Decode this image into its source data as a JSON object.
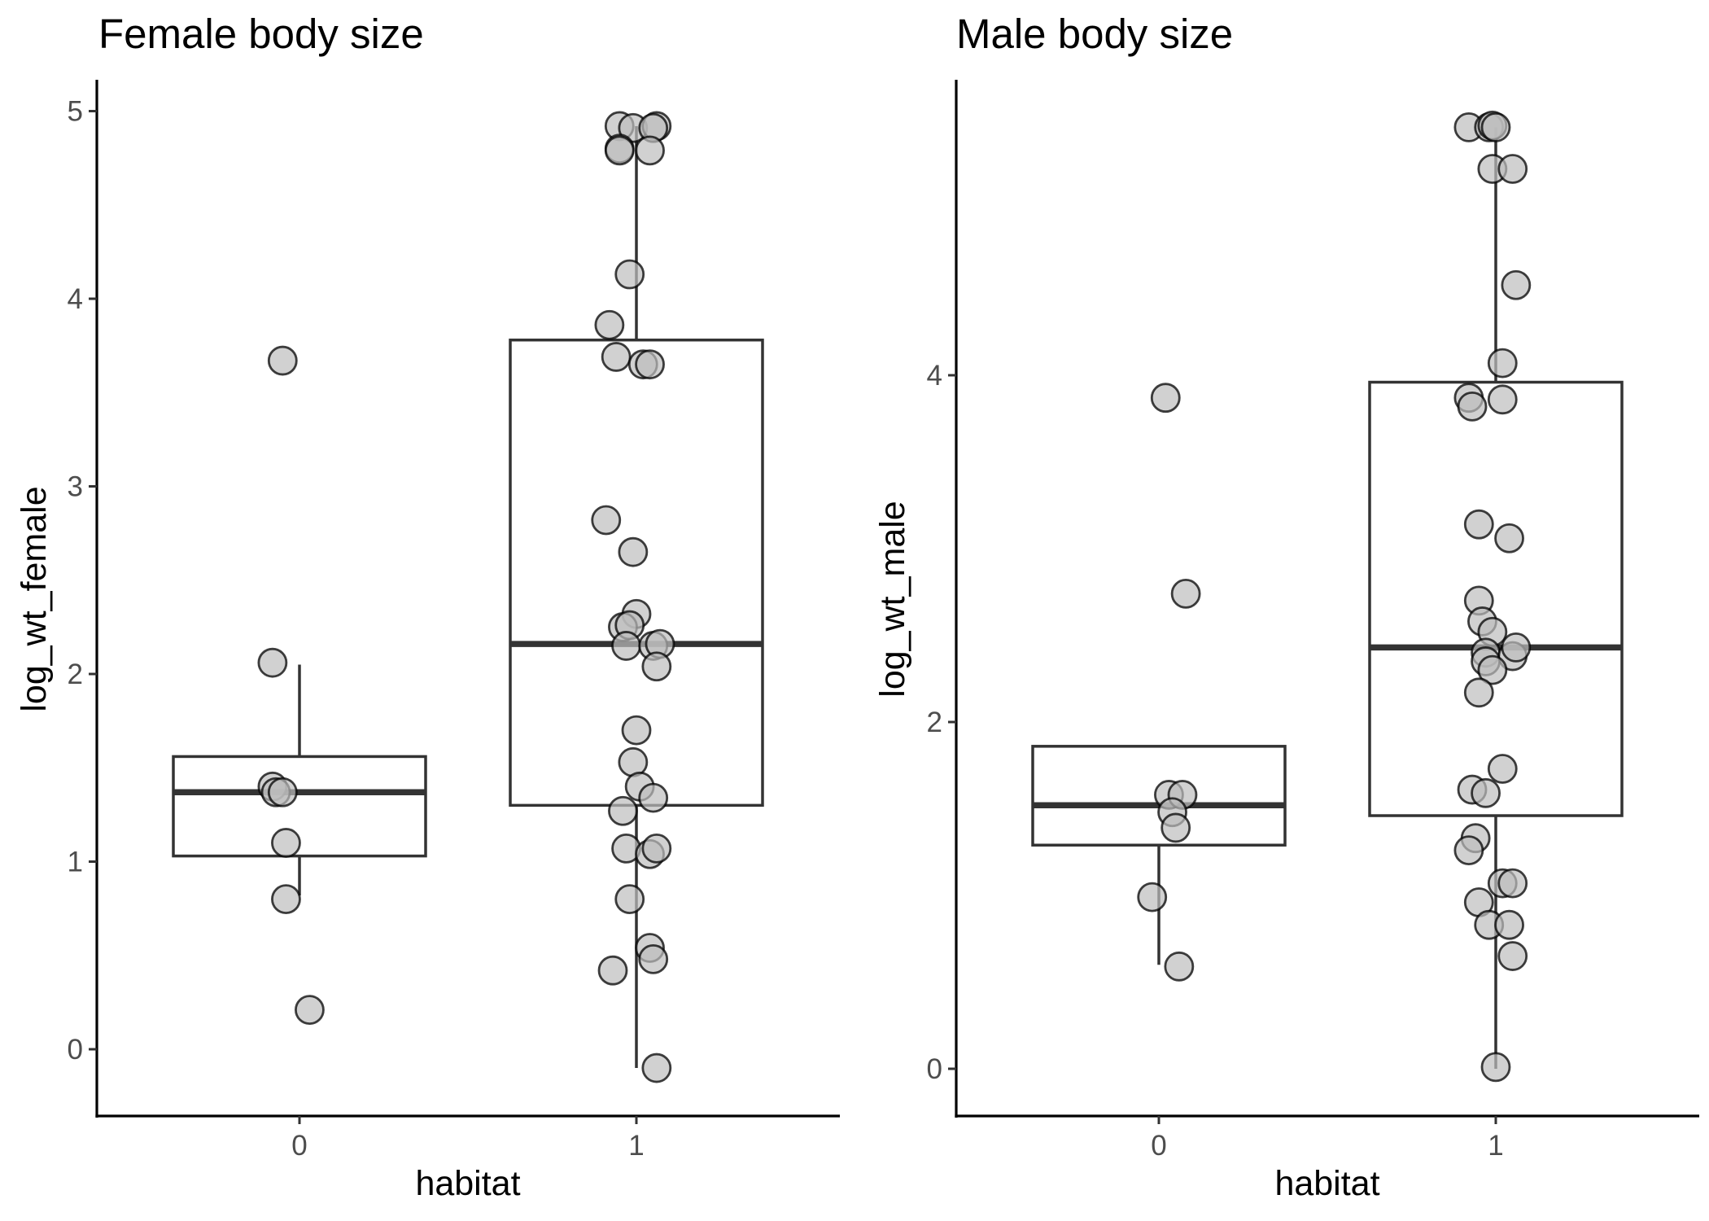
{
  "colors": {
    "point_fill": "#bdbdbd",
    "point_stroke": "#000000",
    "box_stroke": "#333333",
    "tick_text": "#4d4d4d"
  },
  "chart_data": [
    {
      "type": "boxplot",
      "title": "Female body size",
      "xlabel": "habitat",
      "ylabel": "log_wt_female",
      "categories": [
        "0",
        "1"
      ],
      "ylim": [
        -0.32,
        5.17
      ],
      "yticks": [
        0,
        1,
        2,
        3,
        4,
        5
      ],
      "grid": false,
      "boxes": [
        {
          "category": "0",
          "lower_whisker": 0.82,
          "q1": 1.03,
          "median": 1.37,
          "q3": 1.56,
          "upper_whisker": 2.05
        },
        {
          "category": "1",
          "lower_whisker": -0.1,
          "q1": 1.3,
          "median": 2.16,
          "q3": 3.78,
          "upper_whisker": 4.92
        }
      ],
      "points": [
        {
          "category": "0",
          "jitter": -0.05,
          "y": 3.67
        },
        {
          "category": "0",
          "jitter": -0.08,
          "y": 2.06
        },
        {
          "category": "0",
          "jitter": -0.08,
          "y": 1.4
        },
        {
          "category": "0",
          "jitter": -0.07,
          "y": 1.37
        },
        {
          "category": "0",
          "jitter": -0.05,
          "y": 1.37
        },
        {
          "category": "0",
          "jitter": -0.04,
          "y": 1.1
        },
        {
          "category": "0",
          "jitter": -0.04,
          "y": 0.8
        },
        {
          "category": "0",
          "jitter": 0.03,
          "y": 0.21
        },
        {
          "category": "1",
          "jitter": -0.05,
          "y": 4.92
        },
        {
          "category": "1",
          "jitter": -0.01,
          "y": 4.91
        },
        {
          "category": "1",
          "jitter": 0.06,
          "y": 4.92
        },
        {
          "category": "1",
          "jitter": 0.05,
          "y": 4.91
        },
        {
          "category": "1",
          "jitter": -0.05,
          "y": 4.8
        },
        {
          "category": "1",
          "jitter": -0.05,
          "y": 4.79
        },
        {
          "category": "1",
          "jitter": 0.04,
          "y": 4.79
        },
        {
          "category": "1",
          "jitter": -0.02,
          "y": 4.13
        },
        {
          "category": "1",
          "jitter": -0.08,
          "y": 3.86
        },
        {
          "category": "1",
          "jitter": -0.06,
          "y": 3.69
        },
        {
          "category": "1",
          "jitter": 0.02,
          "y": 3.65
        },
        {
          "category": "1",
          "jitter": 0.04,
          "y": 3.65
        },
        {
          "category": "1",
          "jitter": -0.09,
          "y": 2.82
        },
        {
          "category": "1",
          "jitter": -0.01,
          "y": 2.65
        },
        {
          "category": "1",
          "jitter": 0.0,
          "y": 2.32
        },
        {
          "category": "1",
          "jitter": -0.04,
          "y": 2.25
        },
        {
          "category": "1",
          "jitter": -0.02,
          "y": 2.26
        },
        {
          "category": "1",
          "jitter": -0.03,
          "y": 2.15
        },
        {
          "category": "1",
          "jitter": 0.05,
          "y": 2.15
        },
        {
          "category": "1",
          "jitter": 0.07,
          "y": 2.16
        },
        {
          "category": "1",
          "jitter": 0.06,
          "y": 2.04
        },
        {
          "category": "1",
          "jitter": 0.0,
          "y": 1.7
        },
        {
          "category": "1",
          "jitter": -0.01,
          "y": 1.53
        },
        {
          "category": "1",
          "jitter": 0.01,
          "y": 1.4
        },
        {
          "category": "1",
          "jitter": 0.05,
          "y": 1.34
        },
        {
          "category": "1",
          "jitter": -0.04,
          "y": 1.27
        },
        {
          "category": "1",
          "jitter": -0.03,
          "y": 1.07
        },
        {
          "category": "1",
          "jitter": 0.04,
          "y": 1.04
        },
        {
          "category": "1",
          "jitter": 0.06,
          "y": 1.07
        },
        {
          "category": "1",
          "jitter": -0.02,
          "y": 0.8
        },
        {
          "category": "1",
          "jitter": 0.04,
          "y": 0.54
        },
        {
          "category": "1",
          "jitter": -0.07,
          "y": 0.42
        },
        {
          "category": "1",
          "jitter": 0.05,
          "y": 0.48
        },
        {
          "category": "1",
          "jitter": 0.06,
          "y": -0.1
        }
      ]
    },
    {
      "type": "boxplot",
      "title": "Male body size",
      "xlabel": "habitat",
      "ylabel": "log_wt_male",
      "categories": [
        "0",
        "1"
      ],
      "ylim": [
        -0.27,
        5.7
      ],
      "yticks": [
        0,
        2,
        4
      ],
      "grid": false,
      "boxes": [
        {
          "category": "0",
          "lower_whisker": 0.6,
          "q1": 1.29,
          "median": 1.52,
          "q3": 1.86,
          "upper_whisker": 1.86
        },
        {
          "category": "1",
          "lower_whisker": 0.0,
          "q1": 1.46,
          "median": 2.43,
          "q3": 3.96,
          "upper_whisker": 5.43
        }
      ],
      "points": [
        {
          "category": "0",
          "jitter": 0.02,
          "y": 3.87
        },
        {
          "category": "0",
          "jitter": 0.08,
          "y": 2.74
        },
        {
          "category": "0",
          "jitter": 0.03,
          "y": 1.58
        },
        {
          "category": "0",
          "jitter": 0.07,
          "y": 1.58
        },
        {
          "category": "0",
          "jitter": 0.04,
          "y": 1.48
        },
        {
          "category": "0",
          "jitter": 0.05,
          "y": 1.39
        },
        {
          "category": "0",
          "jitter": -0.02,
          "y": 0.99
        },
        {
          "category": "0",
          "jitter": 0.06,
          "y": 0.59
        },
        {
          "category": "1",
          "jitter": -0.08,
          "y": 5.43
        },
        {
          "category": "1",
          "jitter": -0.02,
          "y": 5.43
        },
        {
          "category": "1",
          "jitter": -0.01,
          "y": 5.44
        },
        {
          "category": "1",
          "jitter": 0.0,
          "y": 5.43
        },
        {
          "category": "1",
          "jitter": -0.01,
          "y": 5.19
        },
        {
          "category": "1",
          "jitter": 0.05,
          "y": 5.19
        },
        {
          "category": "1",
          "jitter": 0.06,
          "y": 4.52
        },
        {
          "category": "1",
          "jitter": 0.02,
          "y": 4.07
        },
        {
          "category": "1",
          "jitter": -0.08,
          "y": 3.87
        },
        {
          "category": "1",
          "jitter": -0.07,
          "y": 3.82
        },
        {
          "category": "1",
          "jitter": 0.02,
          "y": 3.86
        },
        {
          "category": "1",
          "jitter": -0.05,
          "y": 3.14
        },
        {
          "category": "1",
          "jitter": 0.04,
          "y": 3.06
        },
        {
          "category": "1",
          "jitter": -0.05,
          "y": 2.7
        },
        {
          "category": "1",
          "jitter": -0.04,
          "y": 2.58
        },
        {
          "category": "1",
          "jitter": -0.01,
          "y": 2.52
        },
        {
          "category": "1",
          "jitter": -0.03,
          "y": 2.4
        },
        {
          "category": "1",
          "jitter": 0.05,
          "y": 2.38
        },
        {
          "category": "1",
          "jitter": 0.06,
          "y": 2.43
        },
        {
          "category": "1",
          "jitter": -0.03,
          "y": 2.35
        },
        {
          "category": "1",
          "jitter": -0.01,
          "y": 2.3
        },
        {
          "category": "1",
          "jitter": -0.05,
          "y": 2.17
        },
        {
          "category": "1",
          "jitter": 0.02,
          "y": 1.73
        },
        {
          "category": "1",
          "jitter": -0.07,
          "y": 1.61
        },
        {
          "category": "1",
          "jitter": -0.03,
          "y": 1.59
        },
        {
          "category": "1",
          "jitter": -0.06,
          "y": 1.33
        },
        {
          "category": "1",
          "jitter": -0.08,
          "y": 1.26
        },
        {
          "category": "1",
          "jitter": 0.02,
          "y": 1.07
        },
        {
          "category": "1",
          "jitter": 0.05,
          "y": 1.07
        },
        {
          "category": "1",
          "jitter": -0.05,
          "y": 0.96
        },
        {
          "category": "1",
          "jitter": -0.02,
          "y": 0.83
        },
        {
          "category": "1",
          "jitter": 0.04,
          "y": 0.83
        },
        {
          "category": "1",
          "jitter": 0.05,
          "y": 0.65
        },
        {
          "category": "1",
          "jitter": 0.0,
          "y": 0.01
        }
      ]
    }
  ]
}
